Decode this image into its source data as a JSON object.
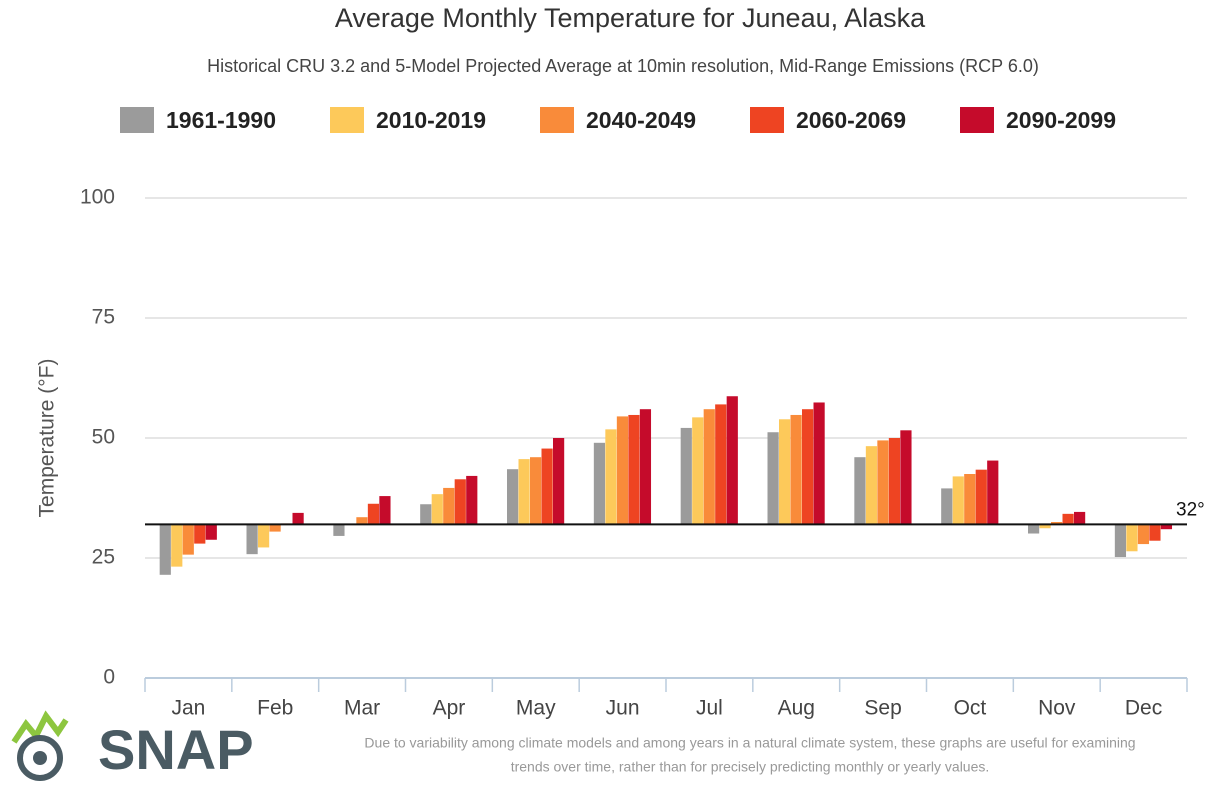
{
  "chart_data": {
    "type": "bar",
    "title": "Average Monthly Temperature for Juneau, Alaska",
    "subtitle": "Historical CRU 3.2 and 5-Model Projected Average at 10min resolution, Mid-Range Emissions (RCP 6.0)",
    "y_label": "Temperature (°F)",
    "categories": [
      "Jan",
      "Feb",
      "Mar",
      "Apr",
      "May",
      "Jun",
      "Jul",
      "Aug",
      "Sep",
      "Oct",
      "Nov",
      "Dec"
    ],
    "series": [
      {
        "name": "1961-1990",
        "color": "#9b9b9b",
        "values": [
          21.5,
          25.8,
          29.6,
          36.2,
          43.5,
          49.0,
          52.1,
          51.2,
          46.0,
          39.5,
          30.1,
          25.2
        ]
      },
      {
        "name": "2010-2019",
        "color": "#fdc95a",
        "values": [
          23.2,
          27.2,
          32.1,
          38.3,
          45.6,
          51.8,
          54.3,
          53.9,
          48.3,
          42.0,
          31.2,
          26.4
        ]
      },
      {
        "name": "2040-2049",
        "color": "#f98b3a",
        "values": [
          25.7,
          30.5,
          33.5,
          39.6,
          46.0,
          54.5,
          56.0,
          54.8,
          49.5,
          42.5,
          32.5,
          27.9
        ]
      },
      {
        "name": "2060-2069",
        "color": "#ee4422",
        "values": [
          28.0,
          32.2,
          36.3,
          41.4,
          47.8,
          54.8,
          57.0,
          56.0,
          50.0,
          43.4,
          34.2,
          28.6
        ]
      },
      {
        "name": "2090-2099",
        "color": "#c50b2b",
        "values": [
          28.8,
          34.4,
          37.9,
          42.1,
          50.0,
          56.0,
          58.7,
          57.4,
          51.6,
          45.3,
          34.6,
          31.0
        ]
      }
    ],
    "baseline": {
      "value": 32,
      "label": "32°"
    },
    "ylim": [
      0,
      100
    ],
    "yticks": [
      0,
      25,
      50,
      75,
      100
    ],
    "grid": true,
    "legend": "top",
    "logo": "SNAP",
    "footnote": [
      "Due to variability among climate models and among years in a natural climate system, these graphs are useful for examining",
      "trends over time, rather than for precisely predicting monthly or yearly values."
    ]
  }
}
